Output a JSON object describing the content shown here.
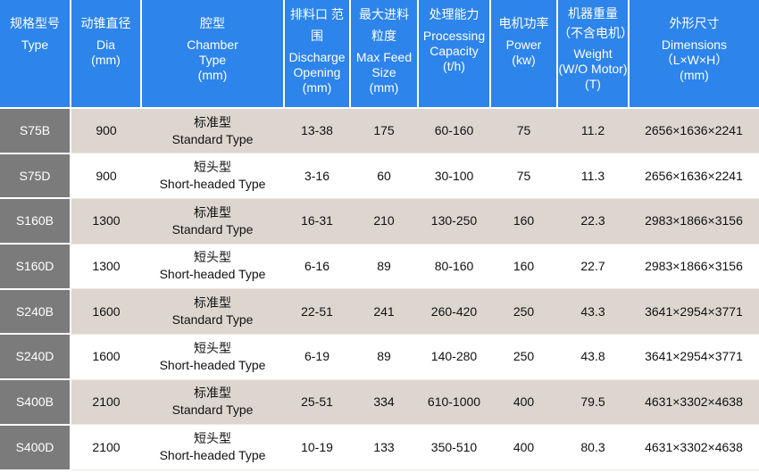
{
  "colors": {
    "header": "#2d84ea",
    "type_column": "#7b7b7b",
    "odd_row": "#dcd6cf",
    "even_row": "#ffffff"
  },
  "headers": [
    {
      "zh": "规格型号",
      "en": [
        "Type"
      ]
    },
    {
      "zh": "动锥直径",
      "en": [
        "Dia",
        "(mm)"
      ]
    },
    {
      "zh": "腔型",
      "en": [
        "Chamber",
        "Type",
        "(mm)"
      ]
    },
    {
      "zh": "排料口 范围",
      "en": [
        "Discharge",
        "Opening",
        "(mm)"
      ]
    },
    {
      "zh": "最大进料 粒度",
      "en": [
        "Max Feed",
        "Size",
        "(mm)"
      ]
    },
    {
      "zh": "处理能力",
      "en": [
        "Processing",
        "Capacity",
        "(t/h)"
      ]
    },
    {
      "zh": "电机功率",
      "en": [
        "Power",
        "(kw)"
      ]
    },
    {
      "zh": "机器重量 （不含电机）",
      "en": [
        "Weight",
        "(W/O Motor)",
        "(T)"
      ]
    },
    {
      "zh": "外形尺寸",
      "en": [
        "Dimensions",
        "（L×W×H）",
        "(mm)"
      ]
    }
  ],
  "rows": [
    {
      "type": "S75B",
      "dia": "900",
      "chamber_zh": "标准型",
      "chamber_en": "Standard Type",
      "opening": "13-38",
      "feed": "175",
      "capacity": "60-160",
      "power": "75",
      "weight": "11.2",
      "dims": "2656×1636×2241"
    },
    {
      "type": "S75D",
      "dia": "900",
      "chamber_zh": "短头型",
      "chamber_en": "Short-headed Type",
      "opening": "3-16",
      "feed": "60",
      "capacity": "30-100",
      "power": "75",
      "weight": "11.3",
      "dims": "2656×1636×2241"
    },
    {
      "type": "S160B",
      "dia": "1300",
      "chamber_zh": "标准型",
      "chamber_en": "Standard Type",
      "opening": "16-31",
      "feed": "210",
      "capacity": "130-250",
      "power": "160",
      "weight": "22.3",
      "dims": "2983×1866×3156"
    },
    {
      "type": "S160D",
      "dia": "1300",
      "chamber_zh": "短头型",
      "chamber_en": "Short-headed Type",
      "opening": "6-16",
      "feed": "89",
      "capacity": "80-160",
      "power": "160",
      "weight": "22.7",
      "dims": "2983×1866×3156"
    },
    {
      "type": "S240B",
      "dia": "1600",
      "chamber_zh": "标准型",
      "chamber_en": "Standard Type",
      "opening": "22-51",
      "feed": "241",
      "capacity": "260-420",
      "power": "250",
      "weight": "43.3",
      "dims": "3641×2954×3771"
    },
    {
      "type": "S240D",
      "dia": "1600",
      "chamber_zh": "短头型",
      "chamber_en": "Short-headed Type",
      "opening": "6-19",
      "feed": "89",
      "capacity": "140-280",
      "power": "250",
      "weight": "43.8",
      "dims": "3641×2954×3771"
    },
    {
      "type": "S400B",
      "dia": "2100",
      "chamber_zh": "标准型",
      "chamber_en": "Standard Type",
      "opening": "25-51",
      "feed": "334",
      "capacity": "610-1000",
      "power": "400",
      "weight": "79.5",
      "dims": "4631×3302×4638"
    },
    {
      "type": "S400D",
      "dia": "2100",
      "chamber_zh": "短头型",
      "chamber_en": "Short-headed Type",
      "opening": "10-19",
      "feed": "133",
      "capacity": "350-510",
      "power": "400",
      "weight": "80.3",
      "dims": "4631×3302×4638"
    }
  ]
}
